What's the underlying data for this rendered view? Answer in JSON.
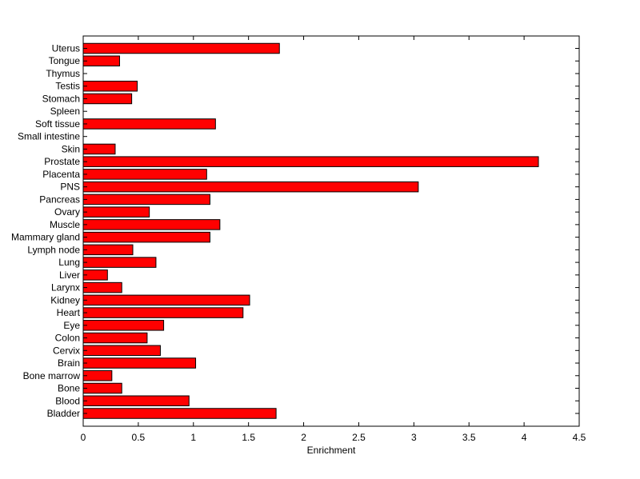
{
  "chart_data": {
    "type": "bar",
    "orientation": "horizontal",
    "title": "",
    "xlabel": "Enrichment",
    "ylabel": "",
    "xlim": [
      0,
      4.5
    ],
    "xticks": [
      "0",
      "0.5",
      "1",
      "1.5",
      "2",
      "2.5",
      "3",
      "3.5",
      "4",
      "4.5"
    ],
    "grid": false,
    "bar_color": "#ff0000",
    "bar_edge_color": "#000000",
    "categories": [
      "Bladder",
      "Blood",
      "Bone",
      "Bone marrow",
      "Brain",
      "Cervix",
      "Colon",
      "Eye",
      "Heart",
      "Kidney",
      "Larynx",
      "Liver",
      "Lung",
      "Lymph node",
      "Mammary gland",
      "Muscle",
      "Ovary",
      "Pancreas",
      "PNS",
      "Placenta",
      "Prostate",
      "Skin",
      "Small intestine",
      "Soft tissue",
      "Spleen",
      "Stomach",
      "Testis",
      "Thymus",
      "Tongue",
      "Uterus"
    ],
    "values": [
      1.75,
      0.96,
      0.35,
      0.26,
      1.02,
      0.7,
      0.58,
      0.73,
      1.45,
      1.51,
      0.35,
      0.22,
      0.66,
      0.45,
      1.15,
      1.24,
      0.6,
      1.15,
      3.04,
      1.12,
      4.13,
      0.29,
      0,
      1.2,
      0,
      0.44,
      0.49,
      0,
      0.33,
      1.78
    ]
  }
}
